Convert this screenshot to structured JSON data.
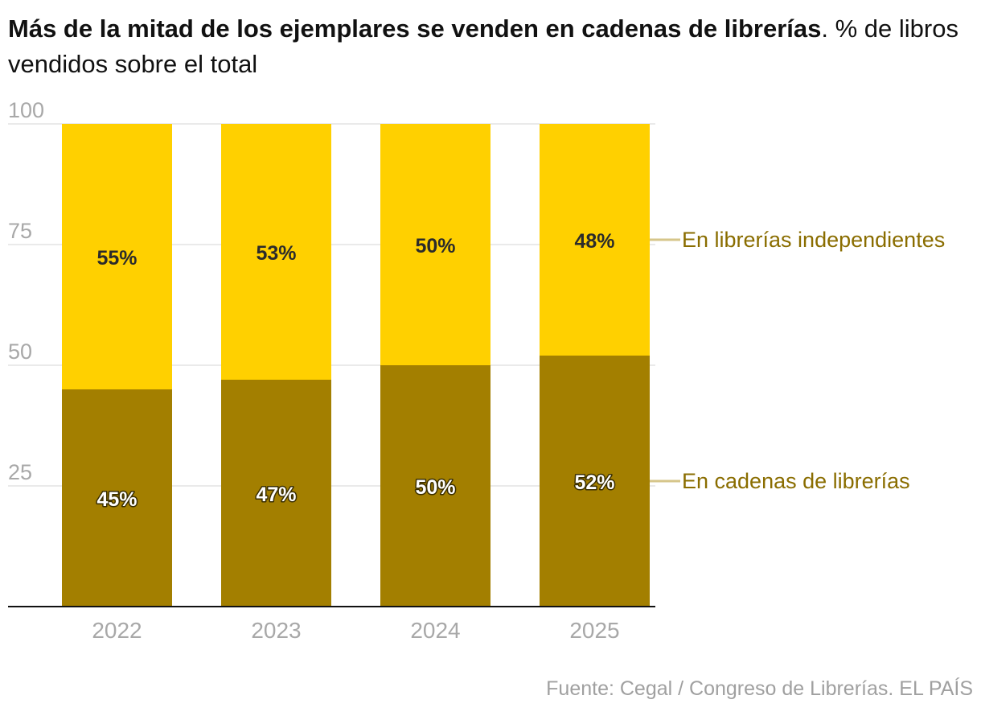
{
  "chart_data": {
    "type": "bar",
    "stacked": true,
    "title": "Más de la mitad de los ejemplares se venden en cadenas de librerías",
    "subtitle": "% de libros vendidos sobre el total",
    "categories": [
      "2022",
      "2023",
      "2024",
      "2025"
    ],
    "series": [
      {
        "name": "En cadenas de librerías",
        "values": [
          45,
          47,
          50,
          52
        ],
        "labels": [
          "45%",
          "47%",
          "50%",
          "52%"
        ],
        "color": "#A37F00"
      },
      {
        "name": "En librerías independientes",
        "values": [
          55,
          53,
          50,
          48
        ],
        "labels": [
          "55%",
          "53%",
          "50%",
          "48%"
        ],
        "color": "#FFD000"
      }
    ],
    "yticks": [
      {
        "value": 25,
        "label": "25"
      },
      {
        "value": 50,
        "label": "50"
      },
      {
        "value": 75,
        "label": "75"
      },
      {
        "value": 100,
        "label": "100"
      }
    ],
    "ylim": [
      0,
      100
    ],
    "xlabel": "",
    "ylabel": "",
    "grid": true,
    "legend_placement": "right, inline next to last bar",
    "source": "Fuente: Cegal / Congreso de Librerías. EL PAÍS"
  },
  "colors": {
    "chains": "#A37F00",
    "independent": "#FFD000",
    "label_chains": "#8A6D00",
    "label_independent": "#8A6D00",
    "connector": "#D6C68A",
    "grid": "#e3e3e3",
    "axis": "#111111",
    "tick_text": "#a8a8a8"
  }
}
